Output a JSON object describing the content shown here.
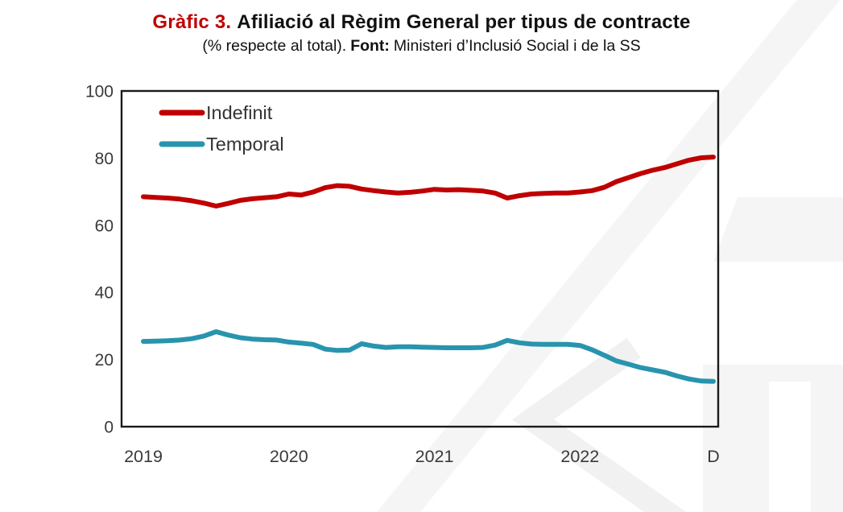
{
  "header": {
    "title_prefix": "Gràfic 3.",
    "title_rest": "Afiliació al Règim General per tipus de contracte",
    "subtitle_plain": "(% respecte al total).",
    "source_label": "Font:",
    "source_rest": "Ministeri d’Inclusió Social i de la SS"
  },
  "chart_data": {
    "type": "line",
    "title": "Gràfic 3. Afiliació al Règim General per tipus de contracte (% respecte al total)",
    "x_unit": "month",
    "x_range": [
      "2019-01",
      "2022-12"
    ],
    "x_tick_labels": [
      "2019",
      "2020",
      "2021",
      "2022",
      "D"
    ],
    "x_tick_month_index": [
      0,
      12,
      24,
      36,
      47
    ],
    "y_ticks": [
      0,
      20,
      40,
      60,
      80,
      100
    ],
    "ylim": [
      0,
      100
    ],
    "grid": false,
    "legend_position": "top-left-inside",
    "series": [
      {
        "name": "Indefinit",
        "color": "#c00000",
        "values": [
          68.5,
          68.3,
          68.1,
          67.8,
          67.3,
          66.6,
          65.7,
          66.5,
          67.4,
          67.9,
          68.2,
          68.5,
          69.3,
          69.0,
          69.9,
          71.2,
          71.8,
          71.6,
          70.8,
          70.3,
          69.9,
          69.6,
          69.8,
          70.2,
          70.7,
          70.5,
          70.6,
          70.4,
          70.2,
          69.6,
          68.1,
          68.8,
          69.3,
          69.5,
          69.6,
          69.6,
          69.9,
          70.3,
          71.3,
          73.0,
          74.2,
          75.4,
          76.4,
          77.2,
          78.3,
          79.4,
          80.1,
          80.3
        ]
      },
      {
        "name": "Temporal",
        "color": "#2994ae",
        "values": [
          25.4,
          25.5,
          25.6,
          25.8,
          26.2,
          27.0,
          28.3,
          27.3,
          26.5,
          26.1,
          25.9,
          25.8,
          25.2,
          24.9,
          24.5,
          23.1,
          22.7,
          22.8,
          24.7,
          24.0,
          23.6,
          23.8,
          23.8,
          23.7,
          23.6,
          23.5,
          23.5,
          23.5,
          23.6,
          24.3,
          25.7,
          25.0,
          24.6,
          24.5,
          24.5,
          24.5,
          24.2,
          22.9,
          21.3,
          19.6,
          18.6,
          17.6,
          16.9,
          16.2,
          15.1,
          14.2,
          13.6,
          13.5
        ]
      }
    ],
    "axis_text_color": "#3a3a3a",
    "frame_color": "#1a1a1a"
  },
  "watermark": {
    "name": "background-logo",
    "color_light": "#f5f5f5",
    "color_mid": "#f1f1f1"
  }
}
